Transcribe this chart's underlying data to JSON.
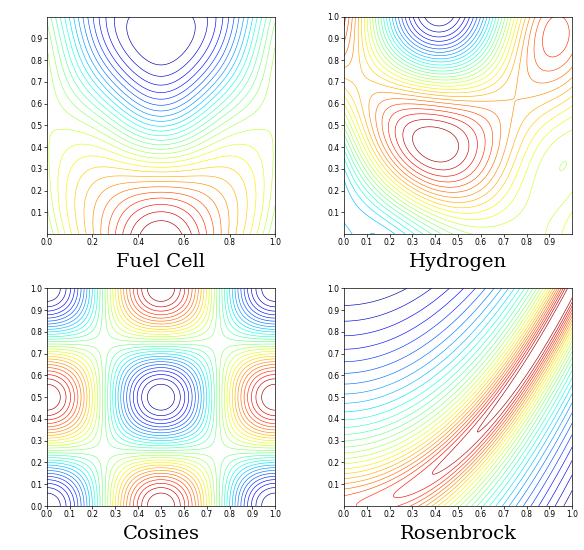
{
  "title_fuel_cell": "Fuel Cell",
  "title_hydrogen": "Hydrogen",
  "title_cosines": "Cosines",
  "title_rosenbrock": "Rosenbrock",
  "n_levels": 30,
  "figsize": [
    5.84,
    5.5
  ],
  "dpi": 100,
  "linewidth": 0.45,
  "title_fontsize": 14
}
